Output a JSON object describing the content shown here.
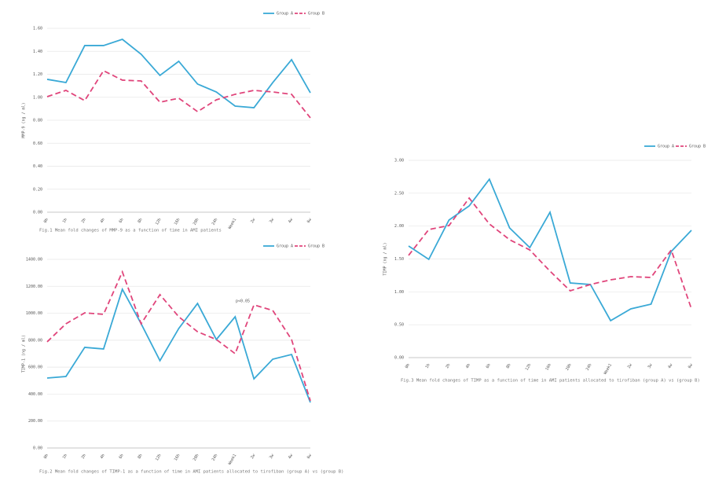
{
  "chart_data": [
    {
      "type": "line",
      "ylabel": "MMP-9 (ng / ml)",
      "caption": "Fig.1 Mean fold changes of MMP-9 as a function of time in AMI patients",
      "categories": [
        "0h",
        "1h",
        "2h",
        "4h",
        "6h",
        "8h",
        "12h",
        "16h",
        "20h",
        "24h",
        "Week1",
        "2w",
        "3w",
        "4w",
        "6w"
      ],
      "series": [
        {
          "name": "Group A",
          "color": "#3aa9d6",
          "dash": false,
          "values": [
            1.156,
            1.128,
            1.45,
            1.45,
            1.504,
            1.374,
            1.19,
            1.313,
            1.115,
            1.046,
            0.923,
            0.909,
            1.128,
            1.327,
            1.039
          ]
        },
        {
          "name": "Group B",
          "color": "#e0457b",
          "dash": true,
          "values": [
            1.005,
            1.06,
            0.971,
            1.231,
            1.149,
            1.142,
            0.957,
            0.992,
            0.875,
            0.978,
            1.026,
            1.06,
            1.046,
            1.026,
            0.821
          ]
        }
      ],
      "ylim": [
        0,
        1.6
      ],
      "yticks": [
        {
          "value": 0,
          "label": "0.00"
        },
        {
          "value": 0.2,
          "label": "0.20"
        },
        {
          "value": 0.4,
          "label": "0.40"
        },
        {
          "value": 0.6,
          "label": "0.60"
        },
        {
          "value": 0.8,
          "label": "0.80"
        },
        {
          "value": 1,
          "label": "1.00"
        },
        {
          "value": 1.2,
          "label": "1.20"
        },
        {
          "value": 1.4,
          "label": "1.40"
        },
        {
          "value": 1.6,
          "label": "1.60"
        }
      ],
      "grid": true,
      "legend": "top-right"
    },
    {
      "type": "line",
      "ylabel": "TIMP-1 (ng / ml)",
      "caption": "Fig.2 Mean fold changes of TIMP-1 as a function of time in AMI patients allocated to tirofiban (group A) vs (group B)",
      "annotation": "p<0.05",
      "categories": [
        "0h",
        "1h",
        "2h",
        "4h",
        "6h",
        "8h",
        "12h",
        "16h",
        "20h",
        "24h",
        "Week1",
        "2w",
        "3w",
        "4w",
        "6w"
      ],
      "series": [
        {
          "name": "Group A",
          "color": "#3aa9d6",
          "dash": false,
          "values": [
            519,
            531,
            747,
            735,
            1178,
            922,
            648,
            887,
            1073,
            805,
            974,
            513,
            659,
            694,
            338
          ]
        },
        {
          "name": "Group B",
          "color": "#e0457b",
          "dash": true,
          "values": [
            788,
            922,
            1003,
            992,
            1307,
            922,
            1138,
            974,
            863,
            805,
            700,
            1062,
            1021,
            805,
            350
          ]
        }
      ],
      "ylim": [
        0,
        1400
      ],
      "yticks": [
        {
          "value": 0,
          "label": "0.00"
        },
        {
          "value": 200,
          "label": "200.00"
        },
        {
          "value": 400,
          "label": "400.00"
        },
        {
          "value": 600,
          "label": "600.00"
        },
        {
          "value": 800,
          "label": "800.00"
        },
        {
          "value": 1000,
          "label": "1000.00"
        },
        {
          "value": 1200,
          "label": "1200.00"
        },
        {
          "value": 1400,
          "label": "1400.00"
        }
      ],
      "grid": true,
      "legend": "top-right"
    },
    {
      "type": "line",
      "ylabel": "TIMP (ng / ml)",
      "caption": "Fig.3 Mean fold changes of TIMP as a function of time in AMI patients allocated to tirofiban (group A) vs (group B)",
      "categories": [
        "0h",
        "1h",
        "2h",
        "4h",
        "6h",
        "8h",
        "12h",
        "16h",
        "20h",
        "24h",
        "Week1",
        "2w",
        "3w",
        "4w",
        "6w"
      ],
      "series": [
        {
          "name": "Group A",
          "color": "#3aa9d6",
          "dash": false,
          "values": [
            1.697,
            1.494,
            2.092,
            2.307,
            2.713,
            1.972,
            1.673,
            2.211,
            1.135,
            1.112,
            0.562,
            0.741,
            0.813,
            1.614,
            1.936
          ]
        },
        {
          "name": "Group B",
          "color": "#e0457b",
          "dash": true,
          "values": [
            1.554,
            1.948,
            2.008,
            2.426,
            2.032,
            1.793,
            1.637,
            1.315,
            1.016,
            1.112,
            1.183,
            1.231,
            1.219,
            1.637,
            0.741
          ]
        }
      ],
      "ylim": [
        0,
        3
      ],
      "yticks": [
        {
          "value": 0,
          "label": "0.00"
        },
        {
          "value": 0.5,
          "label": "0.50"
        },
        {
          "value": 1,
          "label": "1.00"
        },
        {
          "value": 1.5,
          "label": "1.50"
        },
        {
          "value": 2,
          "label": "2.00"
        },
        {
          "value": 2.5,
          "label": "2.50"
        },
        {
          "value": 3,
          "label": "3.00"
        }
      ],
      "grid": true,
      "legend": "top-right"
    }
  ]
}
